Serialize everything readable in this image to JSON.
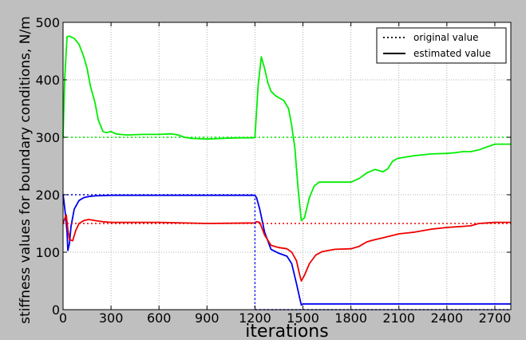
{
  "chart_data": {
    "type": "line",
    "title": "",
    "xlabel": "iterations",
    "ylabel": "stiffness values for boundary conditions, N/m",
    "xlim": [
      0,
      2800
    ],
    "ylim": [
      0,
      500
    ],
    "xticks": [
      0,
      300,
      600,
      900,
      1200,
      1500,
      1800,
      2100,
      2400,
      2700
    ],
    "yticks": [
      0,
      100,
      200,
      300,
      400,
      500
    ],
    "x_tick_labels": [
      "0",
      "300",
      "600",
      "900",
      "1200",
      "1500",
      "1800",
      "2100",
      "2400",
      "2700"
    ],
    "y_tick_labels": [
      "0",
      "100",
      "200",
      "300",
      "400",
      "500"
    ],
    "grid": true,
    "legend_position": "top-right",
    "legend": [
      {
        "label": "original value",
        "style": "dotted"
      },
      {
        "label": "estimated value",
        "style": "solid"
      }
    ],
    "series": [
      {
        "color": "#00ee00",
        "style": "solid",
        "x": [
          0,
          10,
          25,
          40,
          70,
          100,
          130,
          150,
          170,
          200,
          220,
          250,
          270,
          300,
          330,
          360,
          400,
          500,
          600,
          680,
          720,
          760,
          800,
          900,
          1000,
          1100,
          1190,
          1200,
          1220,
          1240,
          1260,
          1280,
          1300,
          1330,
          1380,
          1410,
          1430,
          1450,
          1470,
          1490,
          1510,
          1540,
          1570,
          1600,
          1700,
          1800,
          1850,
          1900,
          1950,
          2000,
          2030,
          2060,
          2090,
          2110,
          2150,
          2200,
          2300,
          2400,
          2450,
          2500,
          2550,
          2600,
          2650,
          2700,
          2750,
          2800
        ],
        "y": [
          300,
          400,
          475,
          476,
          472,
          462,
          440,
          420,
          390,
          360,
          330,
          310,
          308,
          310,
          306,
          305,
          304,
          305,
          305,
          306,
          304,
          300,
          298,
          297,
          298,
          299,
          299,
          300,
          390,
          440,
          420,
          395,
          380,
          372,
          364,
          350,
          320,
          280,
          210,
          155,
          160,
          195,
          215,
          222,
          222,
          222,
          228,
          238,
          244,
          240,
          245,
          258,
          263,
          264,
          266,
          268,
          271,
          272,
          273,
          275,
          275,
          278,
          283,
          288,
          288,
          288
        ]
      },
      {
        "color": "#0000ee",
        "style": "solid",
        "x": [
          0,
          5,
          15,
          25,
          30,
          40,
          50,
          70,
          100,
          130,
          160,
          200,
          300,
          600,
          900,
          1100,
          1200,
          1210,
          1230,
          1260,
          1300,
          1350,
          1400,
          1430,
          1460,
          1480,
          1490,
          1500,
          1600,
          2800
        ],
        "y": [
          200,
          190,
          165,
          135,
          103,
          115,
          145,
          175,
          190,
          195,
          197,
          198,
          199,
          199,
          199,
          199,
          199,
          195,
          175,
          135,
          105,
          98,
          93,
          80,
          45,
          20,
          8,
          10,
          10,
          10
        ]
      },
      {
        "color": "#ee0000",
        "style": "solid",
        "x": [
          0,
          10,
          20,
          30,
          40,
          60,
          80,
          100,
          130,
          160,
          200,
          250,
          300,
          600,
          900,
          1200,
          1210,
          1230,
          1260,
          1300,
          1350,
          1400,
          1430,
          1460,
          1480,
          1490,
          1510,
          1540,
          1580,
          1620,
          1700,
          1800,
          1850,
          1900,
          1950,
          2000,
          2100,
          2200,
          2300,
          2400,
          2450,
          2500,
          2550,
          2600,
          2650,
          2700,
          2800
        ],
        "y": [
          150,
          158,
          165,
          140,
          122,
          120,
          138,
          150,
          155,
          157,
          155,
          153,
          152,
          152,
          150,
          151,
          153,
          152,
          130,
          112,
          108,
          106,
          100,
          85,
          60,
          50,
          60,
          80,
          95,
          101,
          105,
          106,
          110,
          118,
          122,
          125,
          132,
          135,
          140,
          143,
          144,
          145,
          146,
          150,
          151,
          152,
          152
        ]
      },
      {
        "color": "#00ee00",
        "style": "dotted",
        "x": [
          0,
          2800
        ],
        "y": [
          300,
          300
        ]
      },
      {
        "color": "#ee0000",
        "style": "dotted",
        "x": [
          0,
          2800
        ],
        "y": [
          150,
          150
        ]
      },
      {
        "color": "#0000ee",
        "style": "dotted",
        "x": [
          0,
          1200,
          1200,
          2800
        ],
        "y": [
          200,
          200,
          0,
          0
        ]
      }
    ]
  }
}
